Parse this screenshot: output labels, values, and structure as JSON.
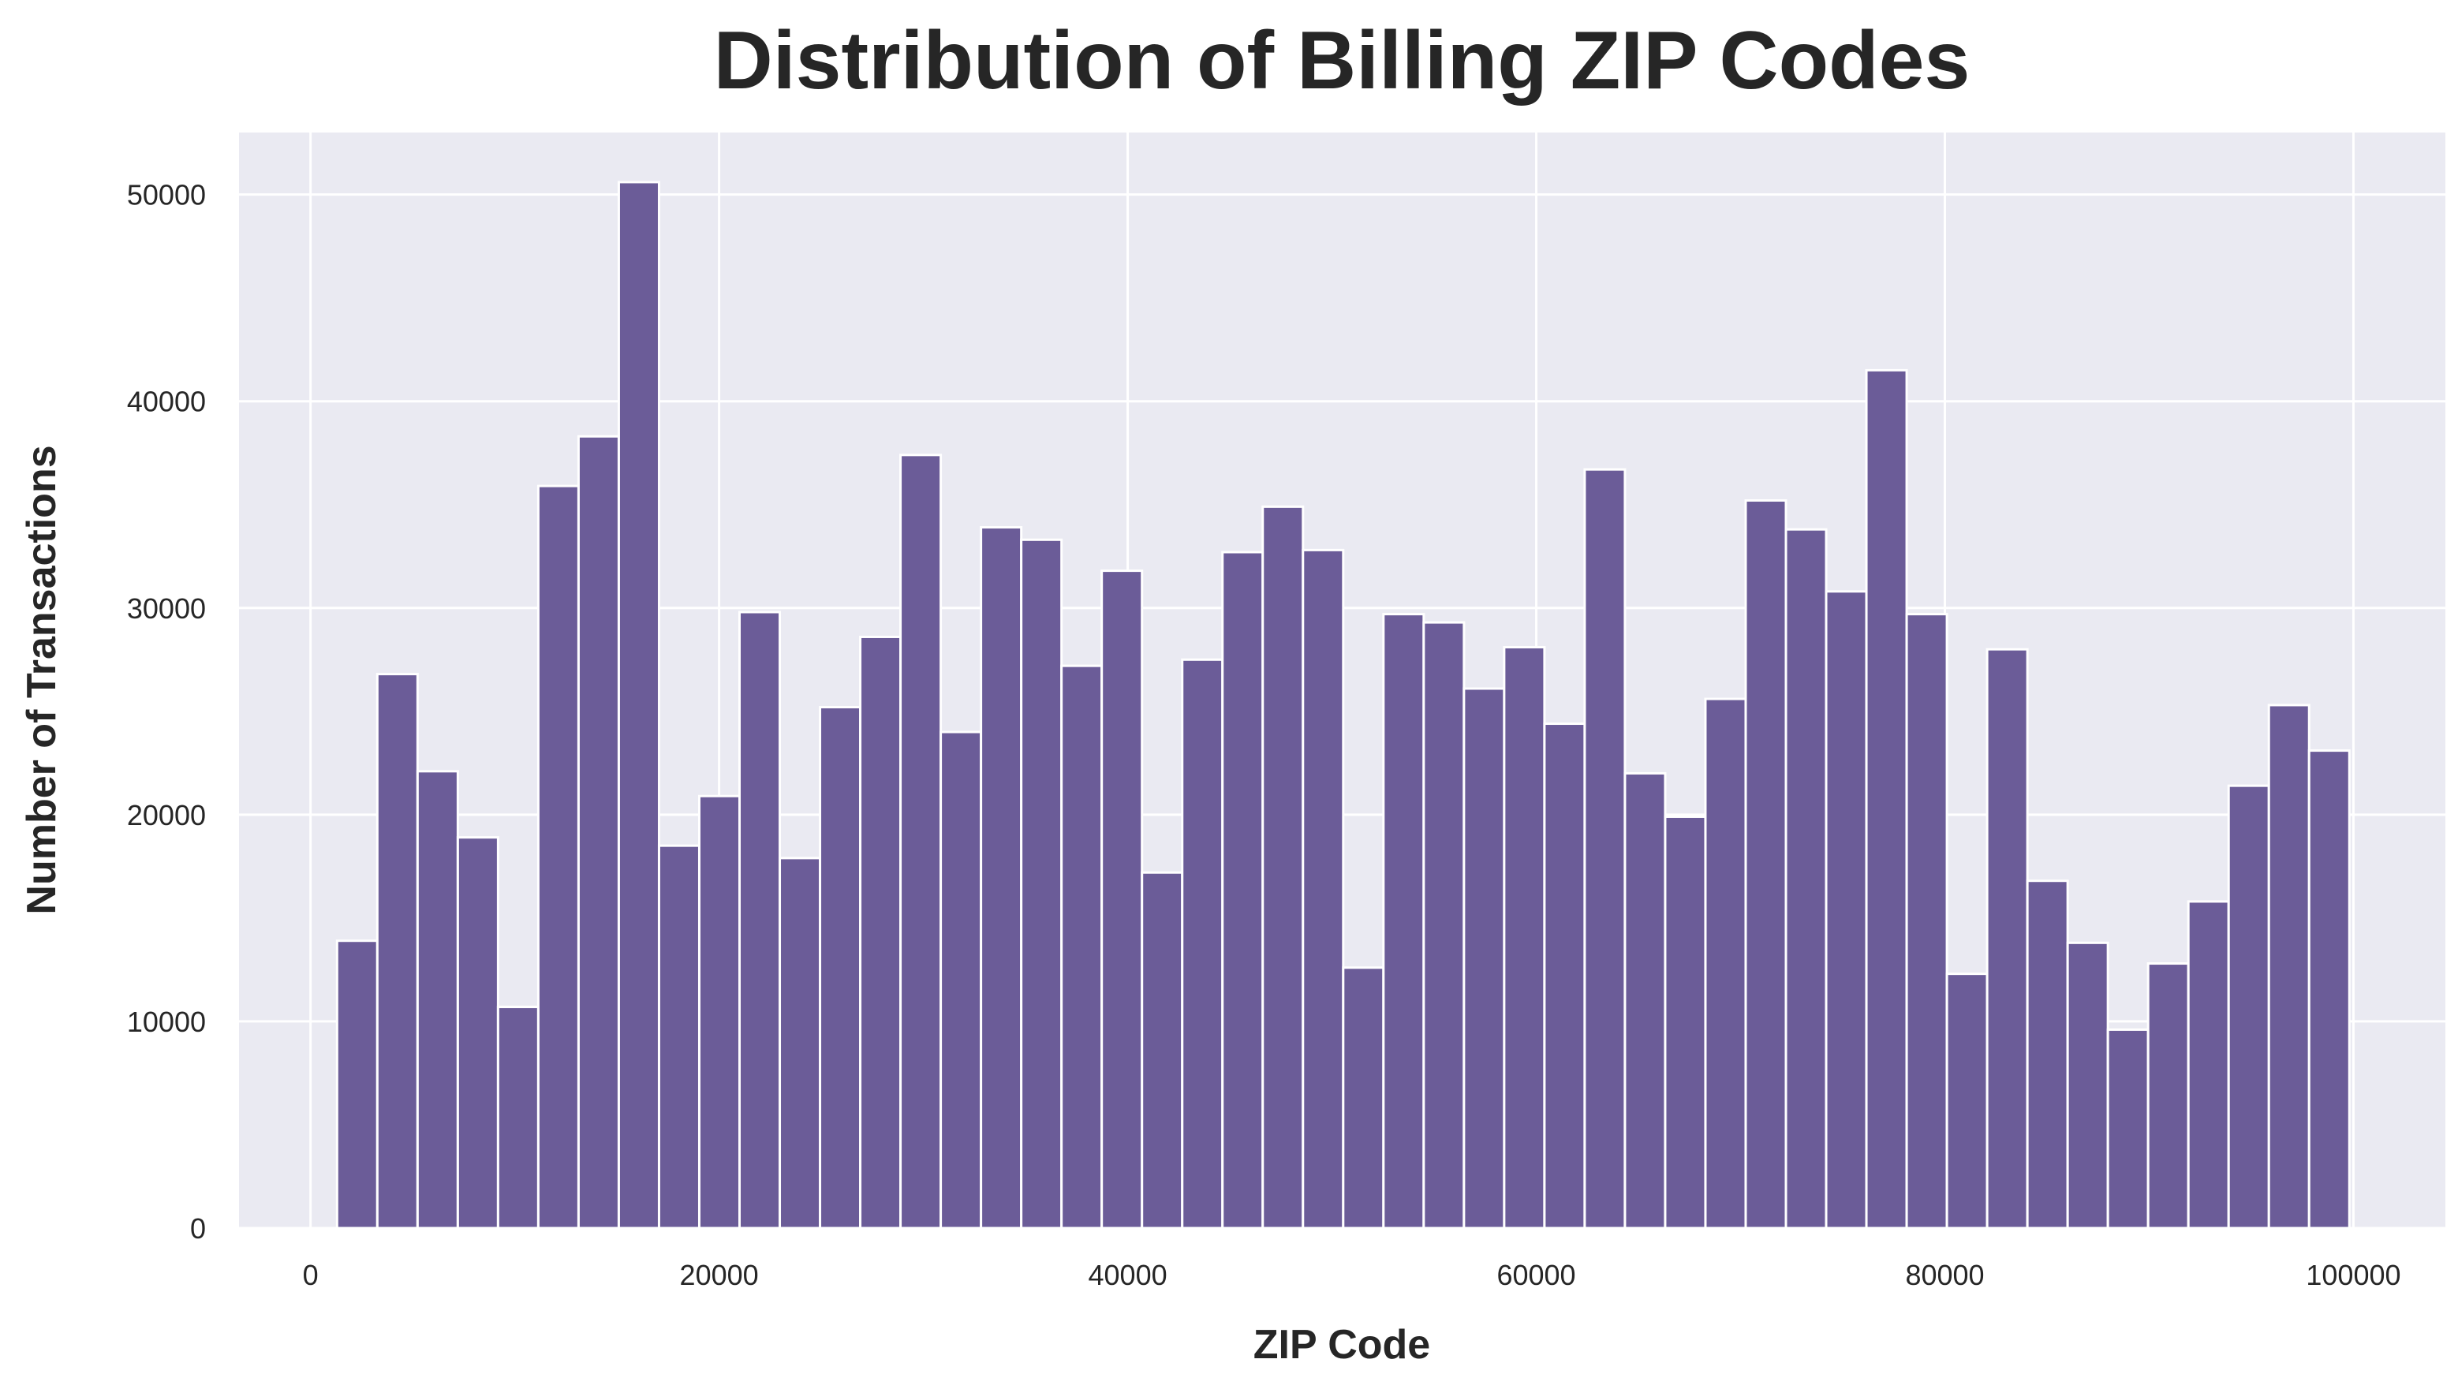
{
  "chart_data": {
    "type": "bar",
    "title": "Distribution of Billing ZIP Codes",
    "xlabel": "ZIP Code",
    "ylabel": "Number of Transactions",
    "xlim": [
      -3500,
      104500
    ],
    "ylim": [
      0,
      53000
    ],
    "xticks": [
      0,
      20000,
      40000,
      60000,
      80000,
      100000
    ],
    "yticks": [
      0,
      10000,
      20000,
      30000,
      40000,
      50000
    ],
    "grid": true,
    "colors": {
      "bar": "#6b5c98",
      "bar_edge": "#ffffff",
      "plot_background": "#eaeaf2",
      "grid": "#ffffff"
    },
    "bin_start": 1300,
    "bin_width": 1970,
    "values": [
      13900,
      26800,
      22100,
      18900,
      10700,
      35900,
      38300,
      50600,
      18500,
      20900,
      29800,
      17900,
      25200,
      28600,
      37400,
      24000,
      33900,
      33300,
      27200,
      31800,
      17200,
      27500,
      32700,
      34900,
      32800,
      12600,
      29700,
      29300,
      26100,
      28100,
      24400,
      36700,
      22000,
      19900,
      25600,
      35200,
      33800,
      30800,
      41500,
      29700,
      12300,
      28000,
      16800,
      13800,
      9600,
      12800,
      15800,
      21400,
      25300,
      23100
    ]
  }
}
